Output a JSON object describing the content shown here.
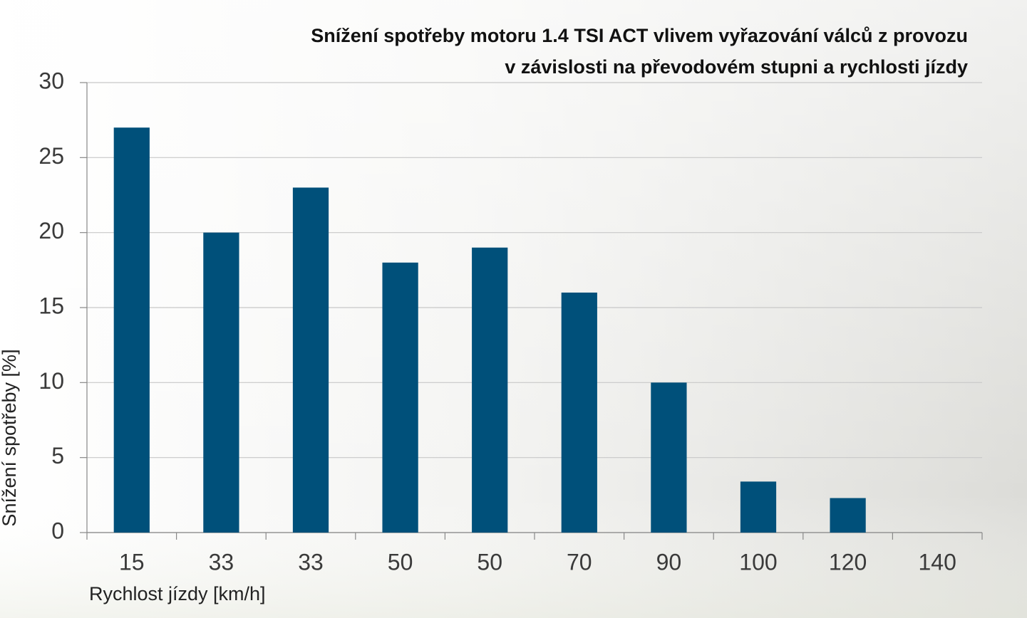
{
  "chart_data": {
    "type": "bar",
    "title": [
      "Snížení spotřeby motoru 1.4 TSI ACT vlivem vyřazování válců z provozu",
      "v závislosti na převodovém stupni a rychlosti jízdy"
    ],
    "x_label": "Rychlost jízdy [km/h]",
    "y_label": "Snížení spotřeby [%]",
    "categories": [
      "15",
      "33",
      "33",
      "50",
      "50",
      "70",
      "90",
      "100",
      "120",
      "140"
    ],
    "values": [
      27,
      20,
      23,
      18,
      19,
      16,
      10,
      3.4,
      2.3,
      null
    ],
    "color": "#00507a",
    "ylim": [
      0,
      30
    ],
    "yticks": [
      0,
      5,
      10,
      15,
      20,
      25,
      30
    ],
    "grid": true
  }
}
